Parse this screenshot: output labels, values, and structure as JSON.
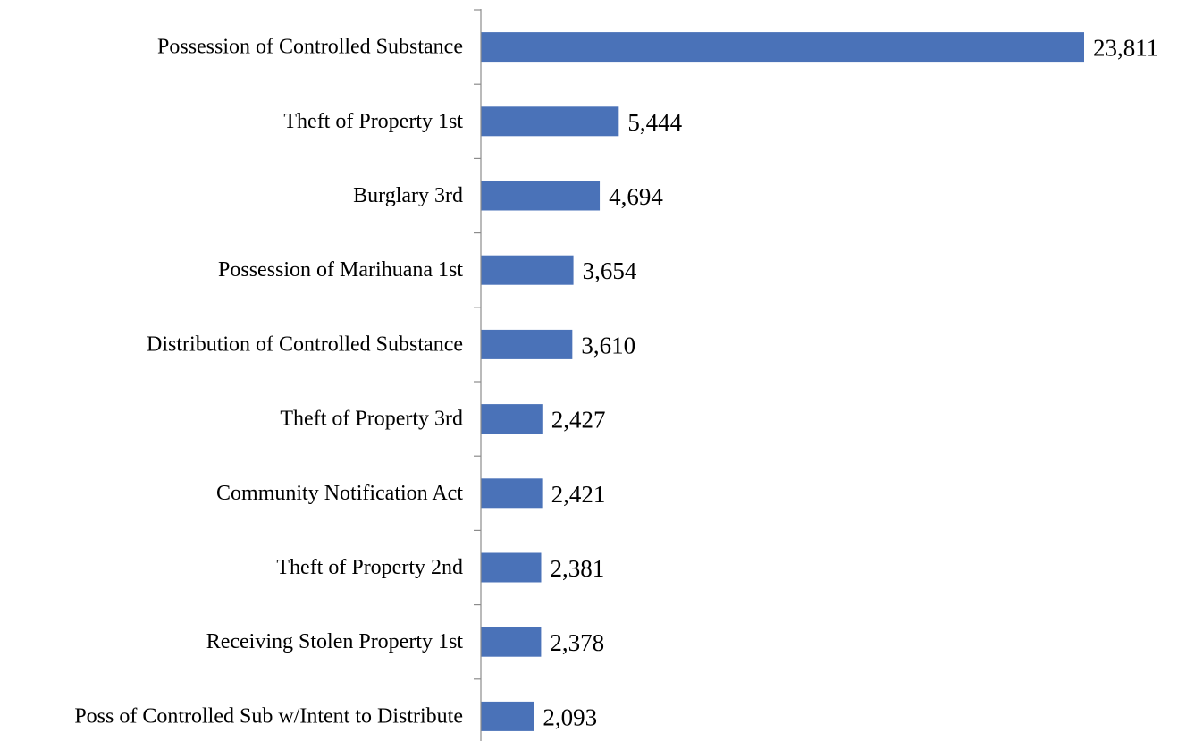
{
  "chart_data": {
    "type": "bar",
    "orientation": "horizontal",
    "title": "",
    "xlabel": "",
    "ylabel": "",
    "categories": [
      "Possession of Controlled Substance",
      "Theft of Property 1st",
      "Burglary 3rd",
      "Possession of Marihuana 1st",
      "Distribution of Controlled Substance",
      "Theft of Property 3rd",
      "Community Notification Act",
      "Theft of Property 2nd",
      "Receiving Stolen Property 1st",
      "Poss of Controlled Sub w/Intent to Distribute"
    ],
    "values": [
      23811,
      5444,
      4694,
      3654,
      3610,
      2427,
      2421,
      2381,
      2378,
      2093
    ],
    "value_labels": [
      "23,811",
      "5,444",
      "4,694",
      "3,654",
      "3,610",
      "2,427",
      "2,421",
      "2,381",
      "2,378",
      "2,093"
    ],
    "xlim": [
      0,
      23811
    ],
    "grid": false,
    "legend": "none",
    "bar_color": "#4a72b8",
    "axis_color": "#8c8c8c"
  }
}
